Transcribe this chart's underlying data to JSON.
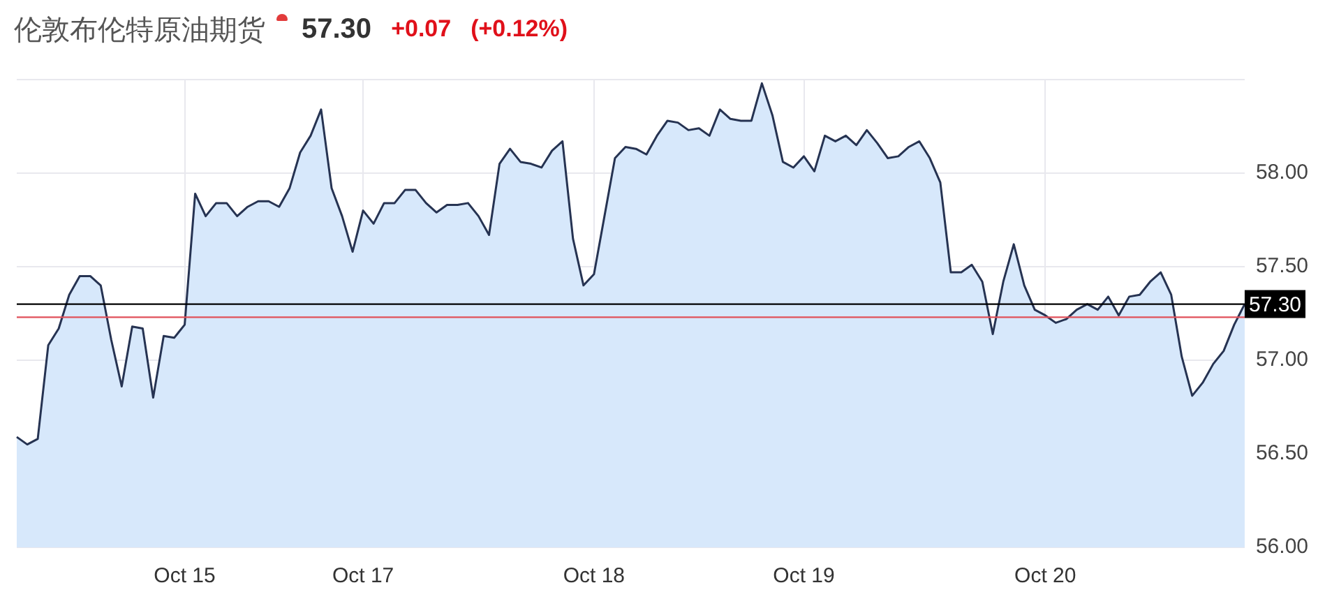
{
  "chart_data": {
    "type": "area",
    "title": "伦敦布伦特原油期货",
    "annotations": [
      "57.30",
      "+0.07",
      "(+0.12%)"
    ],
    "categories": [
      null,
      null,
      null,
      null,
      null,
      null,
      null,
      null,
      null,
      null,
      null,
      null,
      null,
      null,
      null,
      null,
      "Oct 15",
      null,
      null,
      null,
      null,
      null,
      null,
      null,
      null,
      null,
      null,
      null,
      null,
      null,
      null,
      null,
      null,
      "Oct 17",
      null,
      null,
      null,
      null,
      null,
      null,
      null,
      null,
      null,
      null,
      null,
      null,
      null,
      null,
      null,
      null,
      null,
      null,
      null,
      null,
      null,
      "Oct 18",
      null,
      null,
      null,
      null,
      null,
      null,
      null,
      null,
      null,
      null,
      null,
      null,
      null,
      null,
      null,
      null,
      null,
      null,
      null,
      "Oct 19",
      null,
      null,
      null,
      null,
      null,
      null,
      null,
      null,
      null,
      null,
      null,
      null,
      null,
      null,
      null,
      null,
      null,
      null,
      null,
      null,
      null,
      null,
      "Oct 20",
      null,
      null,
      null,
      null,
      null,
      null,
      null,
      null,
      null,
      null,
      null,
      null,
      null,
      null,
      null,
      null,
      null,
      null,
      null
    ],
    "series": [
      {
        "color": "#d7e8fb",
        "values": [
          56.59,
          56.55,
          56.58,
          57.08,
          57.17,
          57.35,
          57.45,
          57.45,
          57.4,
          57.11,
          56.86,
          57.18,
          57.17,
          56.8,
          57.13,
          57.12,
          57.19,
          57.89,
          57.77,
          57.84,
          57.84,
          57.77,
          57.82,
          57.85,
          57.85,
          57.82,
          57.92,
          58.11,
          58.2,
          58.34,
          57.92,
          57.77,
          57.58,
          57.8,
          57.73,
          57.84,
          57.84,
          57.91,
          57.91,
          57.84,
          57.79,
          57.83,
          57.83,
          57.84,
          57.77,
          57.67,
          58.05,
          58.13,
          58.06,
          58.05,
          58.03,
          58.12,
          58.17,
          57.65,
          57.4,
          57.46,
          57.77,
          58.08,
          58.14,
          58.13,
          58.1,
          58.2,
          58.28,
          58.27,
          58.23,
          58.24,
          58.2,
          58.34,
          58.29,
          58.28,
          58.28,
          58.48,
          58.31,
          58.06,
          58.03,
          58.09,
          58.01,
          58.2,
          58.17,
          58.2,
          58.15,
          58.23,
          58.16,
          58.08,
          58.09,
          58.14,
          58.17,
          58.08,
          57.95,
          57.47,
          57.47,
          57.51,
          57.42,
          57.14,
          57.42,
          57.62,
          57.4,
          57.27,
          57.24,
          57.2,
          57.22,
          57.27,
          57.3,
          57.27,
          57.34,
          57.24,
          57.34,
          57.35,
          57.42,
          57.47,
          57.35,
          57.02,
          56.81,
          56.88,
          56.98,
          57.05,
          57.19,
          57.3
        ]
      }
    ],
    "ylim": [
      56,
      58.5
    ],
    "yticks": [
      {
        "value": 56,
        "label": "56.00"
      },
      {
        "value": 56.5,
        "label": "56.50"
      },
      {
        "value": 57,
        "label": "57.00"
      },
      {
        "value": 57.5,
        "label": "57.50"
      },
      {
        "value": 58,
        "label": "58.00"
      },
      {
        "value": 58.5,
        "label": null
      }
    ],
    "ref_lines": [
      {
        "axis": "y",
        "value": 57.3,
        "label": "57.30",
        "color": "#000000"
      },
      {
        "axis": "y",
        "value": 57.23,
        "color": "#e0505a"
      }
    ],
    "grid": true,
    "legend": false
  }
}
